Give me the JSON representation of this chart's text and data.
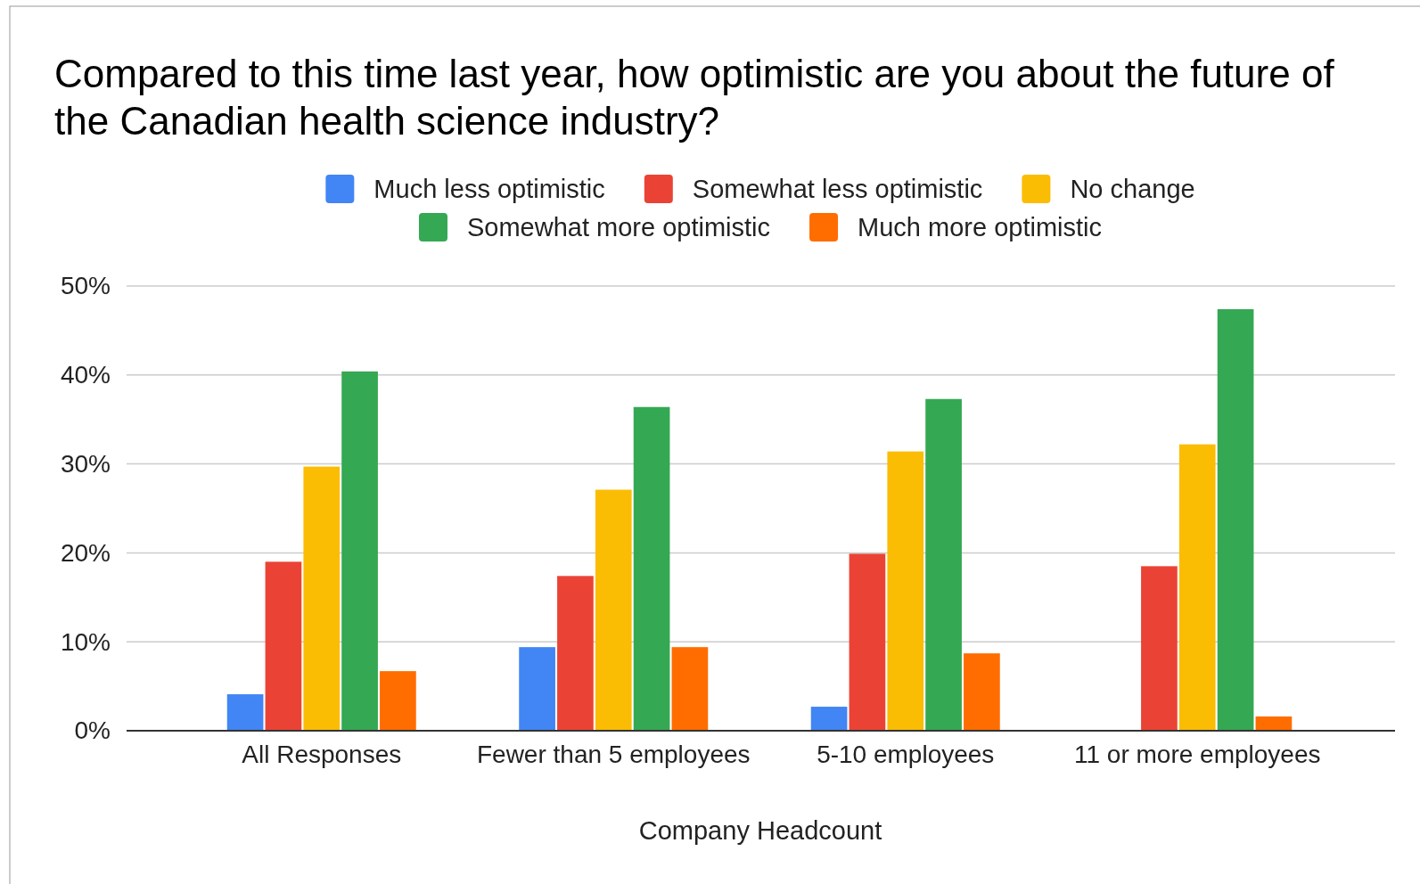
{
  "chart_data": {
    "type": "bar",
    "title": "Compared to this time last year, how optimistic are you about the future of the Canadian health science industry?",
    "xlabel": "Company Headcount",
    "categories": [
      "All Responses",
      "Fewer than 5 employees",
      "5-10 employees",
      "11 or more employees"
    ],
    "series": [
      {
        "name": "Much less optimistic",
        "color": "#4285f4",
        "values": [
          4.1,
          9.4,
          2.7,
          0
        ]
      },
      {
        "name": "Somewhat less optimistic",
        "color": "#ea4335",
        "values": [
          19.0,
          17.4,
          19.9,
          18.5
        ]
      },
      {
        "name": "No change",
        "color": "#fbbc04",
        "values": [
          29.7,
          27.1,
          31.4,
          32.2
        ]
      },
      {
        "name": "Somewhat more optimistic",
        "color": "#34a853",
        "values": [
          40.4,
          36.4,
          37.3,
          47.4
        ]
      },
      {
        "name": "Much more optimistic",
        "color": "#ff6d01",
        "values": [
          6.7,
          9.4,
          8.7,
          1.6
        ]
      }
    ],
    "ylim": [
      0,
      50
    ],
    "yticks": [
      {
        "value": 0,
        "label": "0%"
      },
      {
        "value": 10,
        "label": "10%"
      },
      {
        "value": 20,
        "label": "20%"
      },
      {
        "value": 30,
        "label": "30%"
      },
      {
        "value": 40,
        "label": "40%"
      },
      {
        "value": 50,
        "label": "50%"
      }
    ],
    "grid": "y",
    "legend": "top"
  }
}
